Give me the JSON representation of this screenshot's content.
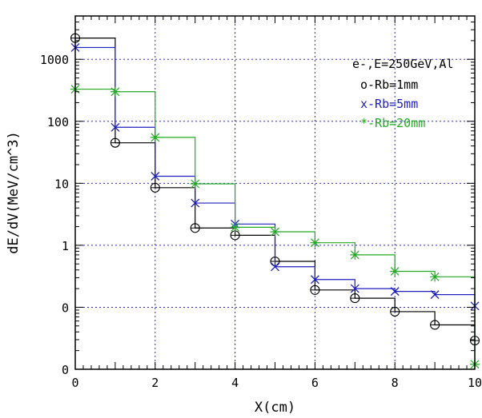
{
  "chart_data": {
    "type": "line",
    "title": "",
    "xlabel": "X(cm)",
    "ylabel": "dE/dV(MeV/cm^3)",
    "xlim": [
      0,
      10
    ],
    "ylim": [
      0.01,
      5000
    ],
    "yscale": "log",
    "grid": true,
    "x_ticks": [
      "0",
      "2",
      "4",
      "6",
      "8",
      "10"
    ],
    "y_ticks": [
      {
        "label": "0",
        "value": 0.01
      },
      {
        "label": "0",
        "value": 0.1
      },
      {
        "label": "1",
        "value": 1
      },
      {
        "label": "10",
        "value": 10
      },
      {
        "label": "100",
        "value": 100
      },
      {
        "label": "1000",
        "value": 1000
      }
    ],
    "annotation": "e-,E=250GeV,Al",
    "legend_position": "top-right",
    "x_edges": [
      0,
      1,
      2,
      3,
      4,
      5,
      6,
      7,
      8,
      9,
      10
    ],
    "series": [
      {
        "name": "o-Rb=1mm",
        "marker": "circle",
        "color": "#000000",
        "values": [
          2200,
          45,
          8.5,
          1.9,
          1.45,
          0.55,
          0.19,
          0.14,
          0.085,
          0.052,
          0.029
        ]
      },
      {
        "name": "x-Rb=5mm",
        "marker": "x",
        "color": "#1f1fbf",
        "values": [
          1550,
          80,
          13,
          4.8,
          2.2,
          0.45,
          0.28,
          0.2,
          0.18,
          0.16,
          0.105
        ]
      },
      {
        "name": "*-Rb=20mm",
        "marker": "star",
        "color": "#22aa22",
        "values": [
          330,
          300,
          55,
          9.8,
          1.95,
          1.65,
          1.1,
          0.7,
          0.38,
          0.31,
          0.012
        ]
      }
    ]
  }
}
